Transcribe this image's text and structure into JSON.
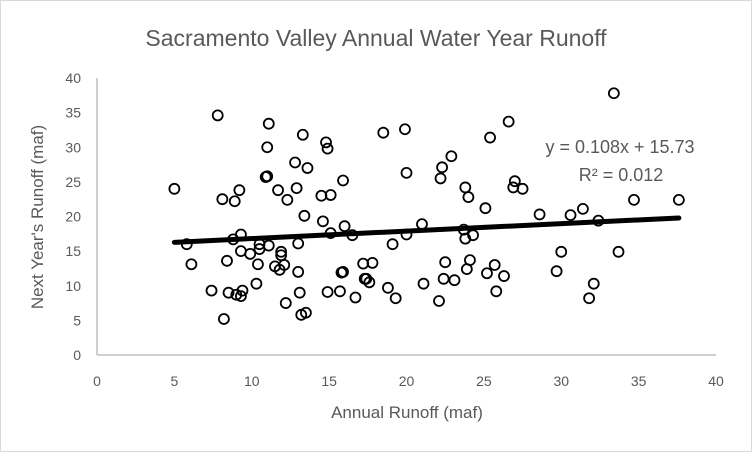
{
  "chart_data": {
    "type": "scatter",
    "title": "Sacramento Valley Annual Water Year Runoff",
    "xlabel": "Annual Runoff (maf)",
    "ylabel": "Next Year's Runoff (maf)",
    "xlim": [
      0,
      40
    ],
    "ylim": [
      0,
      40
    ],
    "xticks": [
      0,
      5,
      10,
      15,
      20,
      25,
      30,
      35,
      40
    ],
    "yticks": [
      0,
      5,
      10,
      15,
      20,
      25,
      30,
      35,
      40
    ],
    "grid": false,
    "marker": "open-circle",
    "marker_color": "#000000",
    "points": [
      [
        5.0,
        24.0
      ],
      [
        5.8,
        16.0
      ],
      [
        6.1,
        13.1
      ],
      [
        7.4,
        9.3
      ],
      [
        7.8,
        34.6
      ],
      [
        8.1,
        22.5
      ],
      [
        8.2,
        5.2
      ],
      [
        8.4,
        13.6
      ],
      [
        8.5,
        9.0
      ],
      [
        8.8,
        16.7
      ],
      [
        8.9,
        22.2
      ],
      [
        9.0,
        8.7
      ],
      [
        9.2,
        23.8
      ],
      [
        9.3,
        17.4
      ],
      [
        9.3,
        15.0
      ],
      [
        9.3,
        8.5
      ],
      [
        9.4,
        9.3
      ],
      [
        9.9,
        14.6
      ],
      [
        10.3,
        10.3
      ],
      [
        10.4,
        13.1
      ],
      [
        10.5,
        15.3
      ],
      [
        10.5,
        16.0
      ],
      [
        10.9,
        25.7
      ],
      [
        11.0,
        25.8
      ],
      [
        11.0,
        30.0
      ],
      [
        11.1,
        33.4
      ],
      [
        11.1,
        15.8
      ],
      [
        11.5,
        12.8
      ],
      [
        11.7,
        23.8
      ],
      [
        11.8,
        12.3
      ],
      [
        11.9,
        14.9
      ],
      [
        11.9,
        14.4
      ],
      [
        12.1,
        13.0
      ],
      [
        12.2,
        7.5
      ],
      [
        12.3,
        22.4
      ],
      [
        12.8,
        27.8
      ],
      [
        12.9,
        24.1
      ],
      [
        13.0,
        16.1
      ],
      [
        13.0,
        12.0
      ],
      [
        13.1,
        9.0
      ],
      [
        13.2,
        5.8
      ],
      [
        13.3,
        31.8
      ],
      [
        13.4,
        20.1
      ],
      [
        13.5,
        6.1
      ],
      [
        13.6,
        27.0
      ],
      [
        14.5,
        23.0
      ],
      [
        14.6,
        19.3
      ],
      [
        14.8,
        30.7
      ],
      [
        14.9,
        9.1
      ],
      [
        14.9,
        29.8
      ],
      [
        15.1,
        17.6
      ],
      [
        15.1,
        23.1
      ],
      [
        15.7,
        9.2
      ],
      [
        15.8,
        11.9
      ],
      [
        15.9,
        12.0
      ],
      [
        15.9,
        25.2
      ],
      [
        16.0,
        18.6
      ],
      [
        16.5,
        17.3
      ],
      [
        16.7,
        8.3
      ],
      [
        17.2,
        13.2
      ],
      [
        17.3,
        11.0
      ],
      [
        17.4,
        11.0
      ],
      [
        17.6,
        10.5
      ],
      [
        17.8,
        13.3
      ],
      [
        18.5,
        32.1
      ],
      [
        18.8,
        9.7
      ],
      [
        19.1,
        16.0
      ],
      [
        19.3,
        8.2
      ],
      [
        19.9,
        32.6
      ],
      [
        20.0,
        26.3
      ],
      [
        20.0,
        17.4
      ],
      [
        21.0,
        18.9
      ],
      [
        21.1,
        10.3
      ],
      [
        22.1,
        7.8
      ],
      [
        22.2,
        25.5
      ],
      [
        22.3,
        27.1
      ],
      [
        22.4,
        11.0
      ],
      [
        22.5,
        13.4
      ],
      [
        22.9,
        28.7
      ],
      [
        23.1,
        10.8
      ],
      [
        23.7,
        18.1
      ],
      [
        23.8,
        16.8
      ],
      [
        23.8,
        24.2
      ],
      [
        23.9,
        12.4
      ],
      [
        24.0,
        22.8
      ],
      [
        24.1,
        13.7
      ],
      [
        24.3,
        17.3
      ],
      [
        25.1,
        21.2
      ],
      [
        25.2,
        11.8
      ],
      [
        25.4,
        31.4
      ],
      [
        25.7,
        13.0
      ],
      [
        25.8,
        9.2
      ],
      [
        26.3,
        11.4
      ],
      [
        26.6,
        33.7
      ],
      [
        26.9,
        24.2
      ],
      [
        27.0,
        25.1
      ],
      [
        27.5,
        24.0
      ],
      [
        28.6,
        20.3
      ],
      [
        29.7,
        12.1
      ],
      [
        30.0,
        14.9
      ],
      [
        30.6,
        20.2
      ],
      [
        31.4,
        21.1
      ],
      [
        31.8,
        8.2
      ],
      [
        32.1,
        10.3
      ],
      [
        32.4,
        19.4
      ],
      [
        33.4,
        37.8
      ],
      [
        33.7,
        14.9
      ],
      [
        34.7,
        22.4
      ],
      [
        37.6,
        22.4
      ]
    ],
    "trendline": {
      "type": "linear",
      "slope": 0.108,
      "intercept": 15.73,
      "x_range": [
        5.0,
        37.6
      ],
      "color": "#000000",
      "equation_label": "y = 0.108x + 15.73",
      "r2_label": "R² = 0.012"
    }
  }
}
